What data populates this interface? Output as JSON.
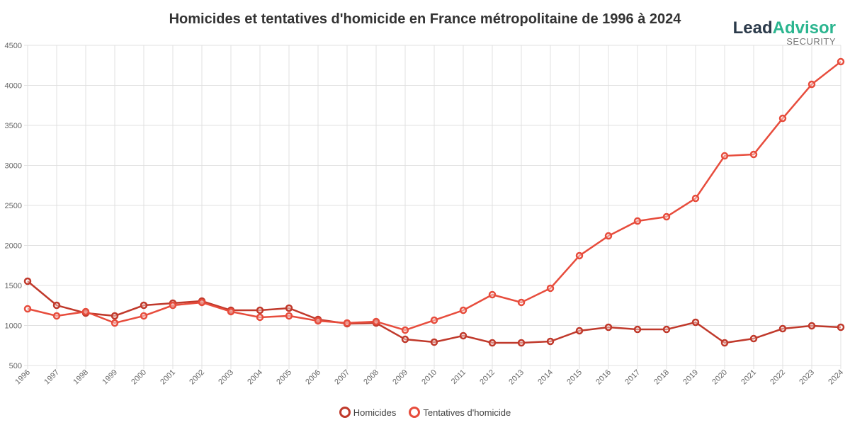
{
  "chart_data": {
    "type": "line",
    "title": "Homicides et tentatives d'homicide en France métropolitaine de 1996 à 2024",
    "xlabel": "",
    "ylabel": "",
    "ylim": [
      500,
      4500
    ],
    "yticks": [
      500,
      1000,
      1500,
      2000,
      2500,
      3000,
      3500,
      4000,
      4500
    ],
    "grid": true,
    "legend": "bottom",
    "x": [
      1996,
      1997,
      1998,
      1999,
      2000,
      2001,
      2002,
      2003,
      2004,
      2005,
      2006,
      2007,
      2008,
      2009,
      2010,
      2011,
      2012,
      2013,
      2014,
      2015,
      2016,
      2017,
      2018,
      2019,
      2020,
      2021,
      2022,
      2023,
      2024
    ],
    "series": [
      {
        "name": "Homicides",
        "color": "#c0392b",
        "values": [
          1553,
          1252,
          1155,
          1120,
          1252,
          1279,
          1305,
          1190,
          1190,
          1217,
          1075,
          1022,
          1031,
          827,
          792,
          872,
          783,
          783,
          801,
          934,
          978,
          951,
          951,
          1040,
          783,
          836,
          960,
          996,
          978
        ]
      },
      {
        "name": "Tentatives d'homicide",
        "color": "#e74c3c",
        "values": [
          1208,
          1120,
          1173,
          1031,
          1120,
          1252,
          1288,
          1173,
          1102,
          1120,
          1058,
          1031,
          1049,
          942,
          1066,
          1190,
          1385,
          1288,
          1465,
          1872,
          2119,
          2305,
          2358,
          2588,
          3119,
          3137,
          3588,
          4013,
          4296
        ]
      }
    ]
  },
  "logo": {
    "lead": "Lead",
    "advisor": "Advisor",
    "tagline": "SECURITY"
  }
}
